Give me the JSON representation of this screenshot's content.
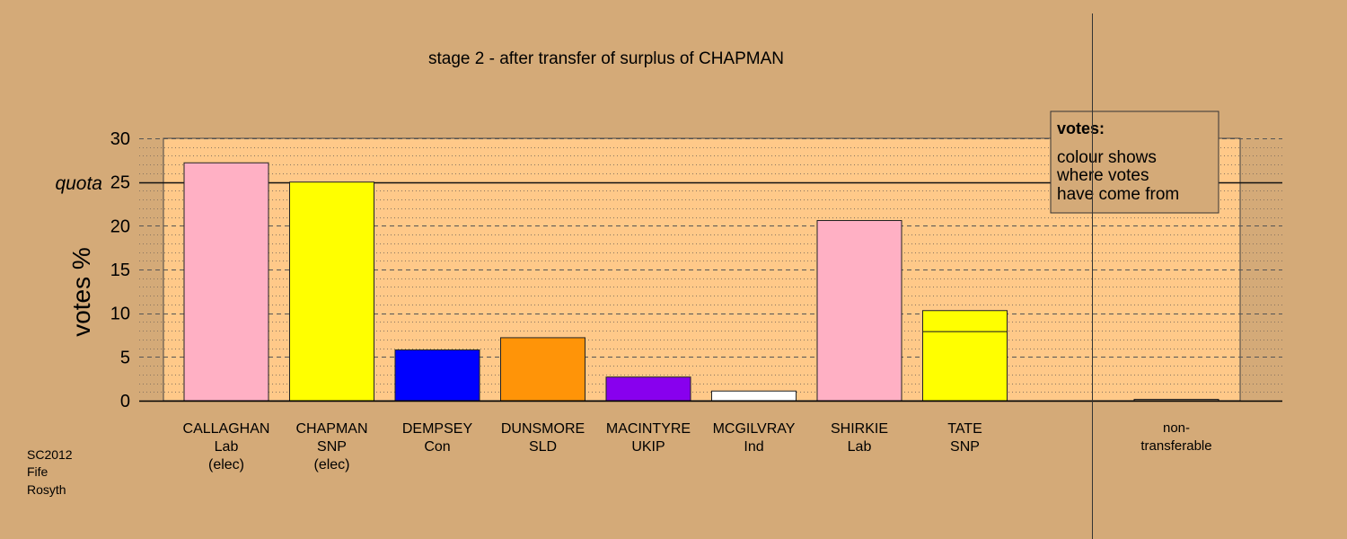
{
  "chart_data": {
    "type": "bar",
    "title": "stage 2 - after transfer of surplus of CHAPMAN",
    "ylabel": "votes %",
    "ylim": [
      0,
      30
    ],
    "yticks": [
      0,
      5,
      10,
      15,
      20,
      25,
      30
    ],
    "quota": {
      "value": 25,
      "label": "quota"
    },
    "candidates": [
      {
        "name": "CALLAGHAN",
        "party": "Lab",
        "status": "(elec)",
        "segments": [
          {
            "value": 27.2,
            "color": "#ffb0c4"
          }
        ]
      },
      {
        "name": "CHAPMAN",
        "party": "SNP",
        "status": "(elec)",
        "segments": [
          {
            "value": 25.0,
            "color": "#ffff00"
          }
        ]
      },
      {
        "name": "DEMPSEY",
        "party": "Con",
        "status": "",
        "segments": [
          {
            "value": 5.8,
            "color": "#0000ff"
          }
        ]
      },
      {
        "name": "DUNSMORE",
        "party": "SLD",
        "status": "",
        "segments": [
          {
            "value": 7.2,
            "color": "#ff9408"
          }
        ]
      },
      {
        "name": "MACINTYRE",
        "party": "UKIP",
        "status": "",
        "segments": [
          {
            "value": 2.7,
            "color": "#8800ee"
          }
        ]
      },
      {
        "name": "MCGILVRAY",
        "party": "Ind",
        "status": "",
        "segments": [
          {
            "value": 1.1,
            "color": "#ffffff"
          }
        ]
      },
      {
        "name": "SHIRKIE",
        "party": "Lab",
        "status": "",
        "segments": [
          {
            "value": 20.6,
            "color": "#ffb0c4"
          }
        ]
      },
      {
        "name": "TATE",
        "party": "SNP",
        "status": "",
        "segments": [
          {
            "value": 7.9,
            "color": "#ffff00"
          },
          {
            "value": 2.4,
            "color": "#ffff00"
          }
        ]
      }
    ],
    "nontransferable": {
      "label_line1": "non-",
      "label_line2": "transferable",
      "value": 0.15,
      "color": "#d4aa78"
    },
    "legend": {
      "title": "votes:",
      "lines": [
        "colour shows",
        "where votes",
        "have come from"
      ],
      "placement": "top-right"
    }
  },
  "footer": {
    "lines": [
      "SC2012",
      "Fife",
      "Rosyth"
    ]
  }
}
